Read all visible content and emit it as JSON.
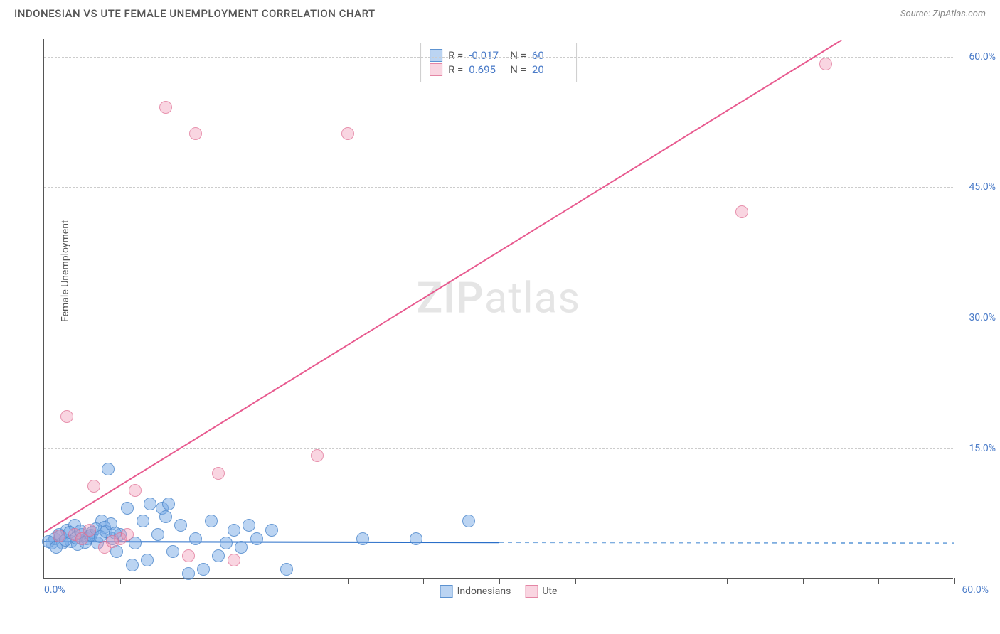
{
  "header": {
    "title": "INDONESIAN VS UTE FEMALE UNEMPLOYMENT CORRELATION CHART",
    "source": "Source: ZipAtlas.com"
  },
  "chart": {
    "type": "scatter",
    "y_axis_label": "Female Unemployment",
    "xlim": [
      0,
      60
    ],
    "ylim": [
      0,
      62
    ],
    "x_tick_step": 5,
    "y_ticks": [
      15,
      30,
      45,
      60
    ],
    "y_tick_labels": [
      "15.0%",
      "30.0%",
      "45.0%",
      "60.0%"
    ],
    "x_label_min": "0.0%",
    "x_label_max": "60.0%",
    "background_color": "#ffffff",
    "grid_color": "#cccccc",
    "axis_color": "#555555",
    "tick_label_color": "#4a7bc8",
    "point_radius": 9,
    "series": [
      {
        "name": "Indonesians",
        "color_fill": "rgba(120,170,230,0.5)",
        "color_border": "rgba(70,130,200,0.7)",
        "R": "-0.017",
        "N": "60",
        "trend": {
          "solid_until_x": 30,
          "y_start": 4.4,
          "y_end": 4.2,
          "color": "#2a6fc9",
          "dash_color": "#7faee0"
        },
        "points": [
          [
            0.5,
            4.0
          ],
          [
            0.7,
            4.5
          ],
          [
            1.0,
            5.0
          ],
          [
            1.2,
            4.0
          ],
          [
            1.5,
            5.5
          ],
          [
            1.8,
            4.2
          ],
          [
            2.0,
            6.0
          ],
          [
            2.2,
            3.8
          ],
          [
            2.5,
            5.0
          ],
          [
            2.8,
            4.5
          ],
          [
            3.0,
            4.8
          ],
          [
            3.2,
            5.2
          ],
          [
            3.5,
            4.0
          ],
          [
            3.8,
            6.5
          ],
          [
            4.0,
            5.8
          ],
          [
            4.2,
            12.5
          ],
          [
            4.5,
            4.5
          ],
          [
            4.8,
            3.0
          ],
          [
            5.0,
            5.0
          ],
          [
            5.5,
            8.0
          ],
          [
            5.8,
            1.5
          ],
          [
            6.0,
            4.0
          ],
          [
            6.5,
            6.5
          ],
          [
            6.8,
            2.0
          ],
          [
            7.0,
            8.5
          ],
          [
            7.5,
            5.0
          ],
          [
            7.8,
            8.0
          ],
          [
            8.0,
            7.0
          ],
          [
            8.2,
            8.5
          ],
          [
            8.5,
            3.0
          ],
          [
            9.0,
            6.0
          ],
          [
            9.5,
            0.5
          ],
          [
            10.0,
            4.5
          ],
          [
            10.5,
            1.0
          ],
          [
            11.0,
            6.5
          ],
          [
            11.5,
            2.5
          ],
          [
            12.0,
            4.0
          ],
          [
            12.5,
            5.5
          ],
          [
            13.0,
            3.5
          ],
          [
            13.5,
            6.0
          ],
          [
            14.0,
            4.5
          ],
          [
            15.0,
            5.5
          ],
          [
            16.0,
            1.0
          ],
          [
            21.0,
            4.5
          ],
          [
            24.5,
            4.5
          ],
          [
            28.0,
            6.5
          ],
          [
            0.3,
            4.2
          ],
          [
            0.8,
            3.5
          ],
          [
            1.1,
            4.8
          ],
          [
            1.4,
            4.3
          ],
          [
            1.7,
            5.2
          ],
          [
            2.1,
            4.6
          ],
          [
            2.4,
            5.4
          ],
          [
            2.7,
            4.1
          ],
          [
            3.1,
            4.9
          ],
          [
            3.4,
            5.6
          ],
          [
            3.7,
            4.7
          ],
          [
            4.1,
            5.3
          ],
          [
            4.4,
            6.2
          ],
          [
            4.7,
            5.1
          ]
        ]
      },
      {
        "name": "Ute",
        "color_fill": "rgba(240,150,180,0.4)",
        "color_border": "rgba(220,100,140,0.6)",
        "R": "0.695",
        "N": "20",
        "trend": {
          "y_start": 5.5,
          "y_end": 70,
          "x_end": 60,
          "color": "#e85a8f"
        },
        "points": [
          [
            1.5,
            18.5
          ],
          [
            2.0,
            5.0
          ],
          [
            2.5,
            4.5
          ],
          [
            3.0,
            5.5
          ],
          [
            3.3,
            10.5
          ],
          [
            4.0,
            3.5
          ],
          [
            5.0,
            4.5
          ],
          [
            5.5,
            5.0
          ],
          [
            6.0,
            10.0
          ],
          [
            8.0,
            54.0
          ],
          [
            9.5,
            2.5
          ],
          [
            10.0,
            51.0
          ],
          [
            11.5,
            12.0
          ],
          [
            12.5,
            2.0
          ],
          [
            18.0,
            14.0
          ],
          [
            20.0,
            51.0
          ],
          [
            46.0,
            42.0
          ],
          [
            51.5,
            59.0
          ],
          [
            1.0,
            4.8
          ],
          [
            4.5,
            4.2
          ]
        ]
      }
    ],
    "legend_top": {
      "rows": [
        {
          "swatch": "blue",
          "r_label": "R =",
          "r_val": "-0.017",
          "n_label": "N =",
          "n_val": "60"
        },
        {
          "swatch": "pink",
          "r_label": "R =",
          "r_val": "0.695",
          "n_label": "N =",
          "n_val": "20"
        }
      ]
    },
    "legend_bottom": {
      "items": [
        {
          "swatch": "blue",
          "label": "Indonesians"
        },
        {
          "swatch": "pink",
          "label": "Ute"
        }
      ]
    },
    "watermark": {
      "bold": "ZIP",
      "rest": "atlas"
    }
  }
}
